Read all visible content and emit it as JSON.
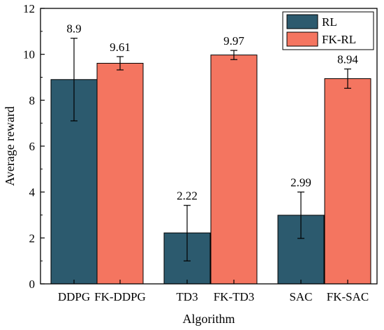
{
  "chart_data": {
    "type": "bar",
    "xlabel": "Algorithm",
    "ylabel": "Average reward",
    "ylim": [
      0,
      12
    ],
    "yticks": [
      0,
      2,
      4,
      6,
      8,
      10,
      12
    ],
    "grid": false,
    "legend_position": "top-right",
    "groups": [
      {
        "series": "RL",
        "category": "DDPG",
        "value": 8.9,
        "error": [
          7.1,
          10.7
        ],
        "label": "8.9"
      },
      {
        "series": "FK-RL",
        "category": "FK-DDPG",
        "value": 9.61,
        "error": [
          9.32,
          9.9
        ],
        "label": "9.61"
      },
      {
        "series": "RL",
        "category": "TD3",
        "value": 2.22,
        "error": [
          1.0,
          3.42
        ],
        "label": "2.22"
      },
      {
        "series": "FK-RL",
        "category": "FK-TD3",
        "value": 9.97,
        "error": [
          9.77,
          10.17
        ],
        "label": "9.97"
      },
      {
        "series": "RL",
        "category": "SAC",
        "value": 2.99,
        "error": [
          1.98,
          4.0
        ],
        "label": "2.99"
      },
      {
        "series": "FK-RL",
        "category": "FK-SAC",
        "value": 8.94,
        "error": [
          8.52,
          9.36
        ],
        "label": "8.94"
      }
    ],
    "series": [
      {
        "name": "RL",
        "color": "#2c5a6e"
      },
      {
        "name": "FK-RL",
        "color": "#f47560"
      }
    ]
  }
}
